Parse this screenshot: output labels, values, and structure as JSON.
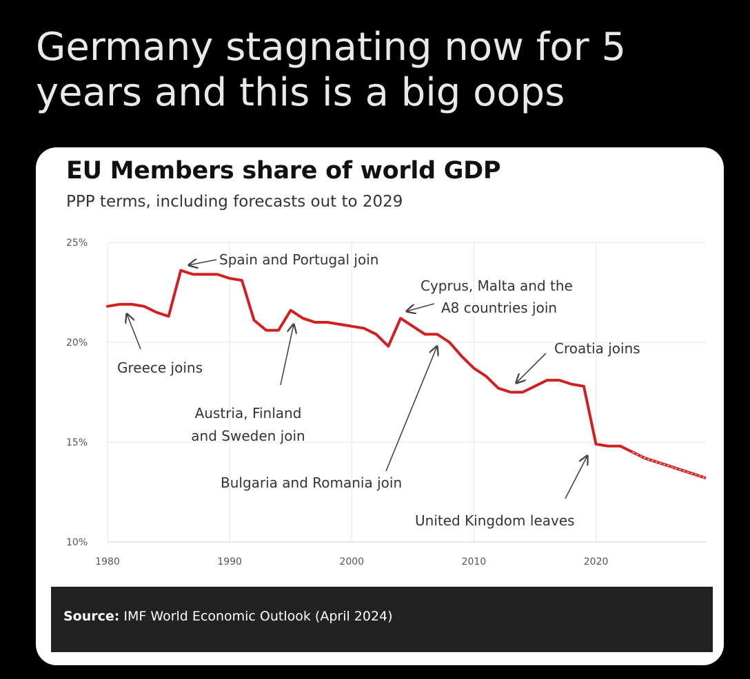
{
  "post": {
    "text": "Germany stagnating now for 5\nyears and this is a big oops"
  },
  "chart_data": {
    "type": "line",
    "title": "EU Members share of world GDP",
    "subtitle": "PPP terms, including forecasts out to 2029",
    "xlabel": "",
    "ylabel": "",
    "xlim": [
      1980,
      2029
    ],
    "ylim": [
      10,
      25
    ],
    "x_ticks": [
      "1980",
      "1990",
      "2000",
      "2010",
      "2020"
    ],
    "y_ticks": [
      "10%",
      "15%",
      "20%",
      "25%"
    ],
    "grid": true,
    "color": "#d21f1f",
    "series": [
      {
        "x": [
          1980,
          1981,
          1982,
          1983,
          1984,
          1985,
          1986,
          1987,
          1988,
          1989,
          1990,
          1991,
          1992,
          1993,
          1994,
          1995,
          1996,
          1997,
          1998,
          1999,
          2000,
          2001,
          2002,
          2003,
          2004,
          2005,
          2006,
          2007,
          2008,
          2009,
          2010,
          2011,
          2012,
          2013,
          2014,
          2015,
          2016,
          2017,
          2018,
          2019,
          2020,
          2021,
          2022,
          2023
        ],
        "values": [
          21.8,
          21.9,
          21.9,
          21.8,
          21.5,
          21.3,
          23.6,
          23.4,
          23.4,
          23.4,
          23.2,
          23.1,
          21.1,
          20.6,
          20.6,
          21.6,
          21.2,
          21.0,
          21.0,
          20.9,
          20.8,
          20.7,
          20.4,
          19.8,
          21.2,
          20.8,
          20.4,
          20.4,
          20.0,
          19.3,
          18.7,
          18.3,
          17.7,
          17.5,
          17.5,
          17.8,
          18.1,
          18.1,
          17.9,
          17.8,
          14.9,
          14.8,
          14.8,
          14.5
        ]
      },
      {
        "x": [
          2023,
          2024,
          2025,
          2026,
          2027,
          2028,
          2029
        ],
        "values": [
          14.5,
          14.2,
          14.0,
          13.8,
          13.6,
          13.4,
          13.2
        ],
        "forecast": true
      }
    ],
    "annotations": [
      {
        "text": "Spain and Portugal join",
        "x": 1986
      },
      {
        "text": "Cyprus, Malta and the\nA8 countries join",
        "x": 2004
      },
      {
        "text": "Greece joins",
        "x": 1981
      },
      {
        "text": "Austria, Finland\nand Sweden join",
        "x": 1995
      },
      {
        "text": "Croatia joins",
        "x": 2013
      },
      {
        "text": "Bulgaria and Romania join",
        "x": 2007
      },
      {
        "text": "United Kingdom leaves",
        "x": 2020
      }
    ]
  },
  "source": {
    "label": "Source:",
    "text": " IMF World Economic Outlook (April 2024)"
  }
}
